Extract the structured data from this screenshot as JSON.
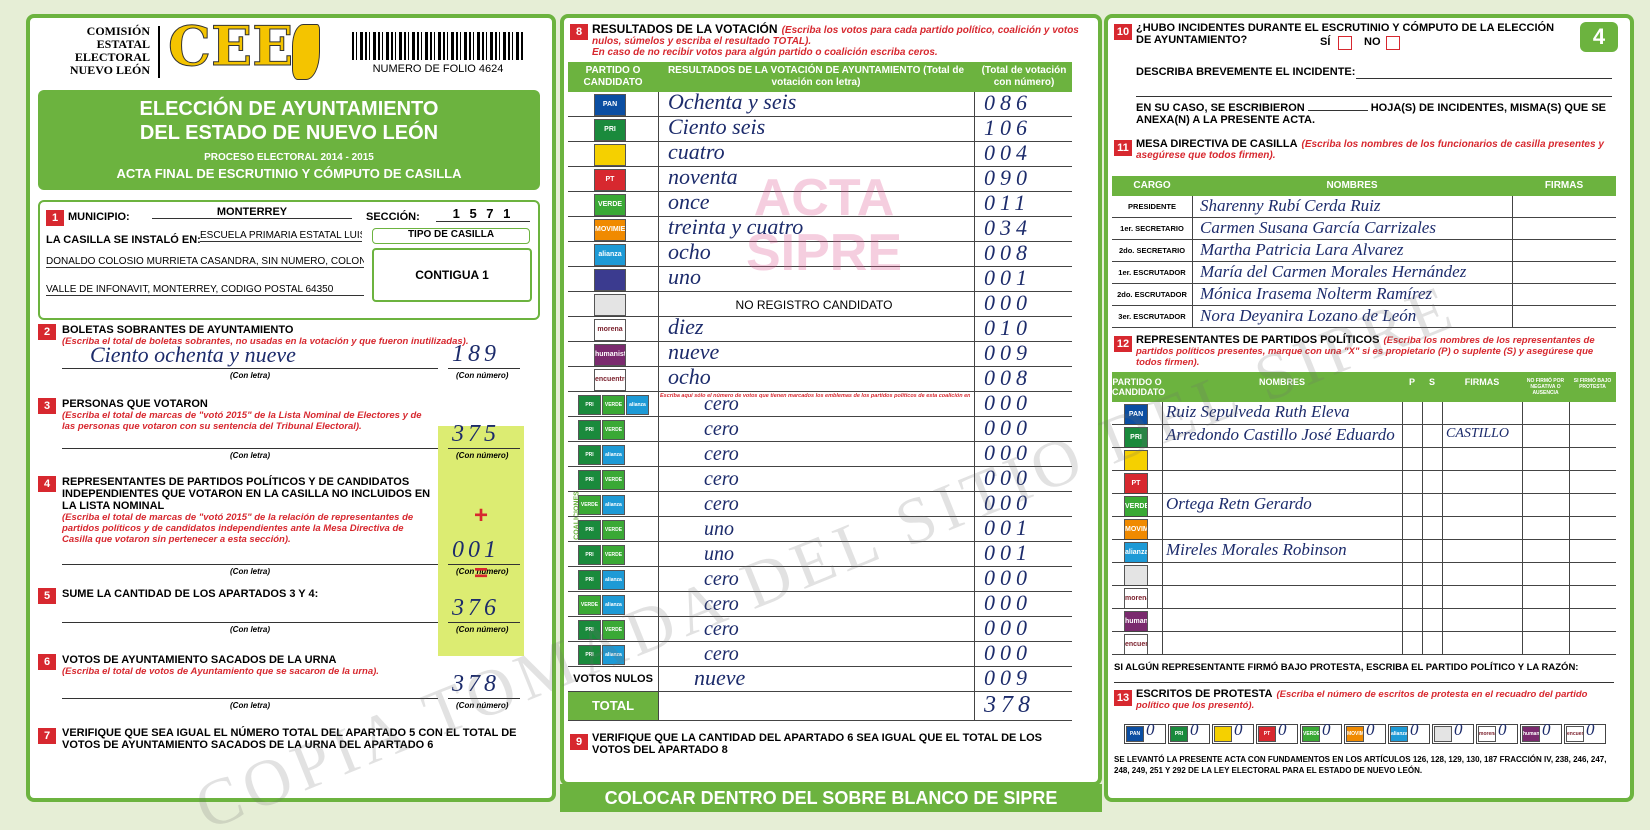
{
  "header": {
    "commission": [
      "COMISIÓN",
      "ESTATAL",
      "ELECTORAL",
      "NUEVO LEÓN"
    ],
    "logo": "CEE",
    "folio": "NUMERO DE FOLIO 4624",
    "sheet": "4"
  },
  "party_colors": {
    "PAN": "#0b4ea2",
    "PRI": "#1a8a3c",
    "PT": "#d7282f",
    "VERDE": "#3aa935",
    "MOVIMIENTO CIUDADANO": "#f08a00",
    "alianza": "#1d9ad6",
    "morena": "#ffffff",
    "humanista": "#7a2a6e",
    "encuentro": "#ffffff"
  },
  "left": {
    "title": [
      "ELECCIÓN DE AYUNTAMIENTO",
      "DEL ESTADO DE NUEVO LEÓN"
    ],
    "process": "PROCESO ELECTORAL 2014 - 2015",
    "subtitle": "ACTA FINAL DE ESCRUTINIO Y CÓMPUTO DE CASILLA",
    "s1": {
      "num": "1",
      "municipio_label": "MUNICIPIO:",
      "municipio": "MONTERREY",
      "seccion_label": "SECCIÓN:",
      "seccion": "1 5 7 1",
      "installed_label": "LA CASILLA SE INSTALÓ EN:",
      "address": [
        "ESCUELA PRIMARIA ESTATAL LUIS",
        "DONALDO COLOSIO MURRIETA CASANDRA, SIN NÚMERO, COLONIA",
        "VALLE DE INFONAVIT, MONTERREY, CODIGO POSTAL 64350"
      ],
      "tipo_label": "TIPO DE CASILLA",
      "tipo": "CONTIGUA 1"
    },
    "sections": [
      {
        "num": "2",
        "heading": "BOLETAS SOBRANTES DE AYUNTAMIENTO",
        "instruction": "(Escriba el total de boletas sobrantes, no usadas en la votación y que fueron inutilizadas).",
        "letter": "Ciento ochenta y nueve",
        "number": "189",
        "letter_label": "(Con letra)",
        "number_label": "(Con número)"
      },
      {
        "num": "3",
        "heading": "PERSONAS QUE VOTARON",
        "instruction": "(Escriba el total de marcas de \"votó 2015\" de la Lista Nominal de Electores y de las personas que votaron con su sentencia del Tribunal Electoral).",
        "number": "375",
        "letter_label": "(Con letra)",
        "number_label": "(Con número)"
      },
      {
        "num": "4",
        "heading": "REPRESENTANTES DE PARTIDOS POLÍTICOS Y DE CANDIDATOS INDEPENDIENTES QUE VOTARON EN LA CASILLA NO INCLUIDOS EN LA LISTA NOMINAL",
        "instruction": "(Escriba el total de marcas de \"votó 2015\" de la relación de representantes de partidos políticos y de candidatos independientes ante la Mesa Directiva de Casilla que votaron sin pertenecer a esta sección).",
        "operator": "+",
        "number": "001",
        "letter_label": "(Con letra)",
        "number_label": "(Con número)"
      },
      {
        "num": "5",
        "heading": "SUME LA CANTIDAD DE LOS APARTADOS 3 Y 4:",
        "operator": "=",
        "number": "376",
        "letter_label": "(Con letra)",
        "number_label": "(Con número)"
      },
      {
        "num": "6",
        "heading": "VOTOS DE AYUNTAMIENTO SACADOS DE LA URNA",
        "instruction": "(Escriba el total de votos de Ayuntamiento que se sacaron de la urna).",
        "number": "378",
        "letter_label": "(Con letra)",
        "number_label": "(Con número)"
      }
    ],
    "s7": {
      "num": "7",
      "text": "VERIFIQUE QUE SEA IGUAL EL NÚMERO TOTAL DEL APARTADO 5 CON EL TOTAL DE VOTOS DE AYUNTAMIENTO SACADOS DE LA URNA DEL APARTADO 6"
    }
  },
  "middle": {
    "s8": {
      "num": "8",
      "heading": "RESULTADOS DE LA VOTACIÓN",
      "instruction": "(Escriba los votos para cada partido político, coalición y votos nulos, súmelos y escriba el resultado TOTAL).",
      "note": "En caso de no recibir votos para algún partido o coalición escriba ceros.",
      "columns": [
        "PARTIDO O CANDIDATO",
        "RESULTADOS DE LA VOTACIÓN DE AYUNTAMIENTO (Total de votación con letra)",
        "(Total de votación con número)"
      ],
      "rows": [
        {
          "party": "PAN",
          "letter": "Ochenta y seis",
          "number": "086"
        },
        {
          "party": "PRI",
          "letter": "Ciento seis",
          "number": "106"
        },
        {
          "color": "#f5d000",
          "letter": "cuatro",
          "number": "004"
        },
        {
          "party": "PT",
          "letter": "noventa",
          "number": "090"
        },
        {
          "party": "VERDE",
          "letter": "once",
          "number": "011"
        },
        {
          "party": "MOVIMIENTO CIUDADANO",
          "letter": "treinta y cuatro",
          "number": "034"
        },
        {
          "party": "alianza",
          "letter": "ocho",
          "number": "008"
        },
        {
          "color": "#3b3b8f",
          "letter": "uno",
          "number": "001"
        },
        {
          "color": "#e4e4e4",
          "note": "NO REGISTRO CANDIDATO",
          "number": "000"
        },
        {
          "party": "morena",
          "letter": "diez",
          "number": "010"
        },
        {
          "party": "humanista",
          "letter": "nueve",
          "number": "009"
        },
        {
          "party": "encuentro",
          "letter": "ocho",
          "number": "008"
        }
      ],
      "coalition_label": "COALICIONES",
      "coalition_note": "Escriba aquí sólo el número de votos que tienen marcados los emblemas de los partidos políticos de esta coalición en sus posibles combinaciones.",
      "coalitions": [
        {
          "parties": [
            "PRI",
            "VERDE",
            "alianza"
          ],
          "letter": "cero",
          "number": "000"
        },
        {
          "parties": [
            "PRI",
            "VERDE"
          ],
          "letter": "cero",
          "number": "000"
        },
        {
          "parties": [
            "PRI",
            "alianza"
          ],
          "letter": "cero",
          "number": "000"
        },
        {
          "parties": [
            "PRI",
            "VERDE"
          ],
          "letter": "cero",
          "number": "000"
        },
        {
          "parties": [
            "VERDE",
            "alianza"
          ],
          "letter": "cero",
          "number": "000"
        },
        {
          "parties": [
            "PRI",
            "VERDE"
          ],
          "letter": "uno",
          "number": "001"
        },
        {
          "parties": [
            "PRI",
            "VERDE"
          ],
          "letter": "uno",
          "number": "001"
        },
        {
          "parties": [
            "PRI",
            "alianza"
          ],
          "letter": "cero",
          "number": "000"
        },
        {
          "parties": [
            "VERDE",
            "alianza"
          ],
          "letter": "cero",
          "number": "000"
        },
        {
          "parties": [
            "PRI",
            "VERDE"
          ],
          "letter": "cero",
          "number": "000"
        },
        {
          "parties": [
            "PRI",
            "alianza"
          ],
          "letter": "cero",
          "number": "000"
        }
      ],
      "nulos_label": "VOTOS NULOS",
      "nulos_letter": "nueve",
      "nulos": "009",
      "total_label": "TOTAL",
      "total": "378"
    },
    "s9": {
      "num": "9",
      "text": "VERIFIQUE QUE LA CANTIDAD DEL APARTADO 6 SEA IGUAL QUE EL TOTAL DE LOS VOTOS DEL APARTADO 8"
    },
    "footer": "COLOCAR DENTRO DEL SOBRE BLANCO DE SIPRE",
    "stamp": [
      "ACTA",
      "SIPRE"
    ]
  },
  "right": {
    "s10": {
      "num": "10",
      "question": "¿HUBO INCIDENTES DURANTE EL ESCRUTINIO Y CÓMPUTO DE LA ELECCIÓN DE AYUNTAMIENTO?",
      "yes": "SÍ",
      "no": "NO",
      "describe": "DESCRIBA BREVEMENTE EL INCIDENTE:",
      "annex_before": "EN SU CASO, SE ESCRIBIERON",
      "annex_after": "HOJA(S) DE INCIDENTES, MISMA(S) QUE SE ANEXA(N) A LA PRESENTE ACTA."
    },
    "s11": {
      "num": "11",
      "heading": "MESA DIRECTIVA DE CASILLA",
      "instruction": "(Escriba los nombres de los funcionarios de casilla presentes y asegúrese que todos firmen).",
      "columns": [
        "CARGO",
        "NOMBRES",
        "FIRMAS"
      ],
      "rows": [
        {
          "cargo": "PRESIDENTE",
          "name": "Sharenny Rubí Cerda Ruiz"
        },
        {
          "cargo": "1er. SECRETARIO",
          "name": "Carmen Susana García Carrizales"
        },
        {
          "cargo": "2do. SECRETARIO",
          "name": "Martha Patricia Lara Alvarez"
        },
        {
          "cargo": "1er. ESCRUTADOR",
          "name": "María del Carmen Morales Hernández"
        },
        {
          "cargo": "2do. ESCRUTADOR",
          "name": "Mónica Irasema Nolterm Ramírez"
        },
        {
          "cargo": "3er. ESCRUTADOR",
          "name": "Nora Deyanira Lozano de León"
        }
      ]
    },
    "s12": {
      "num": "12",
      "heading": "REPRESENTANTES DE PARTIDOS POLÍTICOS",
      "instruction": "(Escriba los nombres de los representantes de partidos políticos presentes, marque con una \"X\" si es propietario (P) o suplente (S) y asegúrese que todos firmen).",
      "columns": [
        "PARTIDO O CANDIDATO",
        "NOMBRES",
        "P",
        "S",
        "FIRMAS",
        "NO FIRMÓ POR NEGATIVA O AUSENCIA",
        "SI FIRMÓ BAJO PROTESTA"
      ],
      "rows": [
        {
          "party": "PAN",
          "name": "Ruiz Sepulveda Ruth Eleva"
        },
        {
          "party": "PRI",
          "name": "Arredondo Castillo José Eduardo",
          "firm": "CASTILLO"
        },
        {
          "color": "#f5d000"
        },
        {
          "party": "PT"
        },
        {
          "party": "VERDE",
          "name": "Ortega Retn Gerardo"
        },
        {
          "party": "MOVIMIENTO CIUDADANO"
        },
        {
          "party": "alianza",
          "name": "Mireles Morales Robinson"
        },
        {
          "color": "#e4e4e4"
        },
        {
          "party": "morena"
        },
        {
          "party": "humanista"
        },
        {
          "party": "encuentro"
        }
      ],
      "protest_note": "SI ALGÚN REPRESENTANTE FIRMÓ BAJO PROTESTA, ESCRIBA EL PARTIDO POLÍTICO Y LA RAZÓN:"
    },
    "s13": {
      "num": "13",
      "heading": "ESCRITOS DE PROTESTA",
      "instruction": "(Escriba el número de escritos de protesta en el recuadro del partido político que los presentó).",
      "boxes": [
        {
          "party": "PAN",
          "count": "0"
        },
        {
          "party": "PRI",
          "count": "0"
        },
        {
          "color": "#f5d000",
          "count": "0"
        },
        {
          "party": "PT",
          "count": "0"
        },
        {
          "party": "VERDE",
          "count": "0"
        },
        {
          "party": "MOVIMIENTO CIUDADANO",
          "count": "0"
        },
        {
          "party": "alianza",
          "count": "0"
        },
        {
          "color": "#e4e4e4",
          "count": "0"
        },
        {
          "party": "morena",
          "count": "0"
        },
        {
          "party": "humanista",
          "count": "0"
        },
        {
          "party": "encuentro",
          "count": "0"
        }
      ],
      "legal": "SE LEVANTÓ LA PRESENTE ACTA CON FUNDAMENTOS EN LOS ARTÍCULOS 126, 128, 129, 130, 187 FRACCIÓN IV, 238, 246, 247, 248, 249, 251 Y 292 DE LA LEY ELECTORAL PARA EL ESTADO DE NUEVO LEÓN."
    }
  },
  "watermark": "COPIA TOMADA DEL SITIO DEL SIPRE"
}
